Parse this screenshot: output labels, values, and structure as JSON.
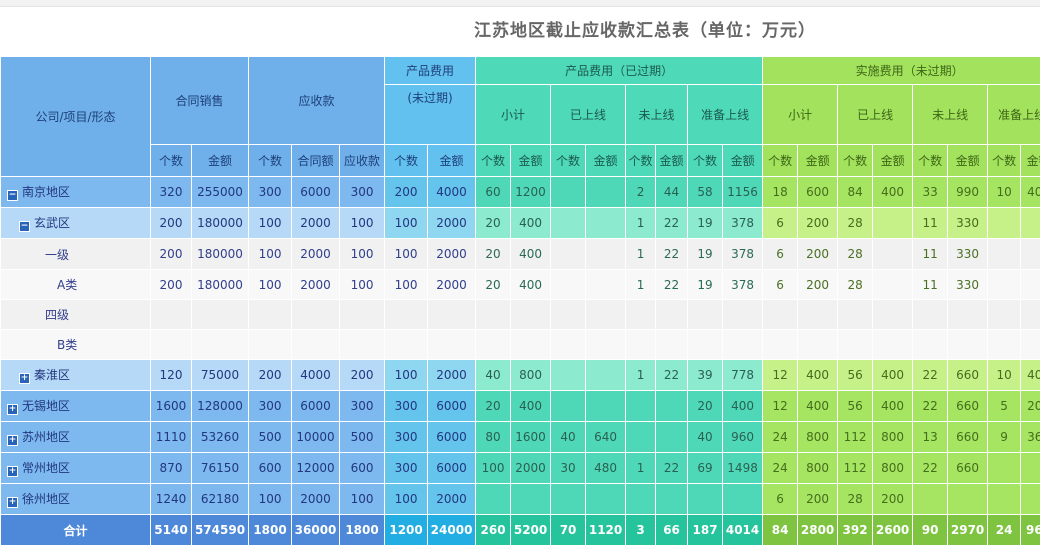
{
  "title": "江苏地区截止应收款汇总表（单位：万元）",
  "headers": {
    "dimension": "公司/项目/形态",
    "contract_sales": "合同销售",
    "receivable": "应收款",
    "product_fee_unexpired_l1": "产品费用",
    "product_fee_unexpired_l2": "(未过期)",
    "product_fee_expired": "产品费用（已过期）",
    "impl_fee_unexpired": "实施费用（未过期）",
    "subtotal": "小计",
    "online": "已上线",
    "not_online": "未上线",
    "prepare_online": "准备上线",
    "count": "个数",
    "amount": "金额",
    "contract_amount": "合同额",
    "receivable_col": "应收款"
  },
  "rows": [
    {
      "label": "南京地区",
      "toggle": "−",
      "cells": [
        "320",
        "255000",
        "300",
        "6000",
        "300",
        "200",
        "4000",
        "60",
        "1200",
        "",
        "",
        "2",
        "44",
        "58",
        "1156",
        "18",
        "600",
        "84",
        "400",
        "33",
        "990",
        "10",
        "400"
      ]
    },
    {
      "label": "玄武区",
      "toggle": "−",
      "cells": [
        "200",
        "180000",
        "100",
        "2000",
        "100",
        "100",
        "2000",
        "20",
        "400",
        "",
        "",
        "1",
        "22",
        "19",
        "378",
        "6",
        "200",
        "28",
        "",
        "11",
        "330",
        "",
        ""
      ]
    },
    {
      "label": "一级",
      "toggle": "",
      "cells": [
        "200",
        "180000",
        "100",
        "2000",
        "100",
        "100",
        "2000",
        "20",
        "400",
        "",
        "",
        "1",
        "22",
        "19",
        "378",
        "6",
        "200",
        "28",
        "",
        "11",
        "330",
        "",
        ""
      ]
    },
    {
      "label": "A类",
      "toggle": "",
      "cells": [
        "200",
        "180000",
        "100",
        "2000",
        "100",
        "100",
        "2000",
        "20",
        "400",
        "",
        "",
        "1",
        "22",
        "19",
        "378",
        "6",
        "200",
        "28",
        "",
        "11",
        "330",
        "",
        ""
      ]
    },
    {
      "label": "四级",
      "toggle": "",
      "cells": [
        "",
        "",
        "",
        "",
        "",
        "",
        "",
        "",
        "",
        "",
        "",
        "",
        "",
        "",
        "",
        "",
        "",
        "",
        "",
        "",
        "",
        "",
        ""
      ]
    },
    {
      "label": "B类",
      "toggle": "",
      "cells": [
        "",
        "",
        "",
        "",
        "",
        "",
        "",
        "",
        "",
        "",
        "",
        "",
        "",
        "",
        "",
        "",
        "",
        "",
        "",
        "",
        "",
        "",
        ""
      ]
    },
    {
      "label": "秦淮区",
      "toggle": "+",
      "cells": [
        "120",
        "75000",
        "200",
        "4000",
        "200",
        "100",
        "2000",
        "40",
        "800",
        "",
        "",
        "1",
        "22",
        "39",
        "778",
        "12",
        "400",
        "56",
        "400",
        "22",
        "660",
        "10",
        "400"
      ]
    },
    {
      "label": "无锡地区",
      "toggle": "+",
      "cells": [
        "1600",
        "128000",
        "300",
        "6000",
        "300",
        "300",
        "6000",
        "20",
        "400",
        "",
        "",
        "",
        "",
        "20",
        "400",
        "12",
        "400",
        "56",
        "400",
        "22",
        "660",
        "5",
        "200"
      ]
    },
    {
      "label": "苏州地区",
      "toggle": "+",
      "cells": [
        "1110",
        "53260",
        "500",
        "10000",
        "500",
        "300",
        "6000",
        "80",
        "1600",
        "40",
        "640",
        "",
        "",
        "40",
        "960",
        "24",
        "800",
        "112",
        "800",
        "13",
        "660",
        "9",
        "360"
      ]
    },
    {
      "label": "常州地区",
      "toggle": "+",
      "cells": [
        "870",
        "76150",
        "600",
        "12000",
        "600",
        "300",
        "6000",
        "100",
        "2000",
        "30",
        "480",
        "1",
        "22",
        "69",
        "1498",
        "24",
        "800",
        "112",
        "800",
        "22",
        "660",
        "",
        ""
      ]
    },
    {
      "label": "徐州地区",
      "toggle": "+",
      "cells": [
        "1240",
        "62180",
        "100",
        "2000",
        "100",
        "100",
        "2000",
        "",
        "",
        "",
        "",
        "",
        "",
        "",
        "",
        "6",
        "200",
        "28",
        "200",
        "",
        "",
        "",
        ""
      ]
    }
  ],
  "total": {
    "label": "合计",
    "cells": [
      "5140",
      "574590",
      "1800",
      "36000",
      "1800",
      "1200",
      "24000",
      "260",
      "5200",
      "70",
      "1120",
      "3",
      "66",
      "187",
      "4014",
      "84",
      "2800",
      "392",
      "2600",
      "90",
      "2970",
      "24",
      "960"
    ]
  }
}
